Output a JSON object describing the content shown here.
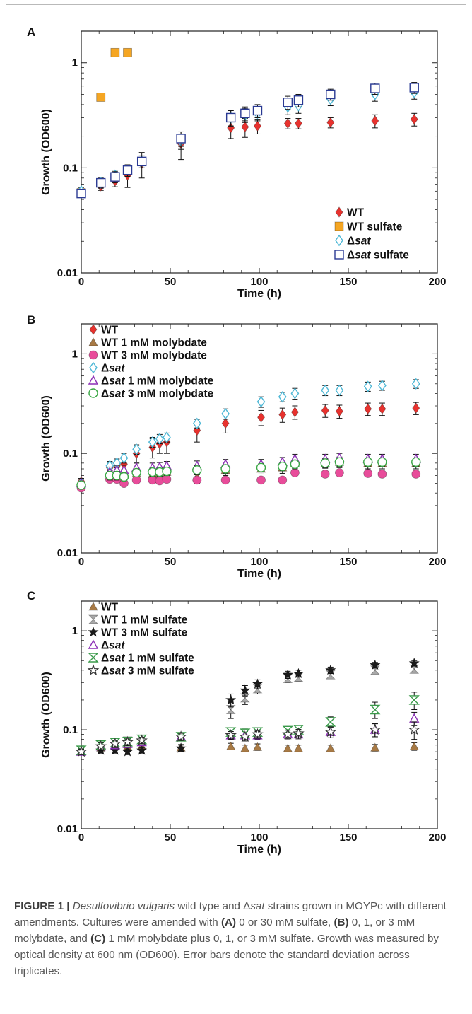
{
  "chart_data": [
    {
      "panel": "A",
      "type": "scatter",
      "xlabel": "Time (h)",
      "ylabel": "Growth (OD600)",
      "xlim": [
        0,
        200
      ],
      "ylim": [
        0.01,
        2
      ],
      "yscale": "log",
      "xticks": [
        "0",
        "50",
        "100",
        "150",
        "200"
      ],
      "yticks": [
        "0.01",
        "0.1",
        "1"
      ],
      "legend_position": "bottom-right",
      "series": [
        {
          "name": "WT",
          "marker": "diamond",
          "filled": true,
          "color": "#e8322e",
          "x": [
            0,
            11,
            19,
            26,
            34,
            56,
            84,
            92,
            99,
            116,
            122,
            140,
            165,
            187
          ],
          "y": [
            0.058,
            0.067,
            0.075,
            0.085,
            0.11,
            0.17,
            0.24,
            0.245,
            0.25,
            0.265,
            0.265,
            0.27,
            0.28,
            0.29
          ],
          "err": [
            0.004,
            0.006,
            0.009,
            0.02,
            0.03,
            0.05,
            0.05,
            0.05,
            0.04,
            0.03,
            0.03,
            0.03,
            0.04,
            0.04
          ]
        },
        {
          "name": "WT sulfate",
          "marker": "square",
          "filled": true,
          "color": "#f5a623",
          "x": [
            0,
            11,
            19,
            26
          ],
          "y": [
            0.058,
            0.47,
            1.25,
            1.25
          ],
          "err": [
            0,
            0,
            0,
            0
          ]
        },
        {
          "name": "Δsat",
          "marker": "diamond",
          "filled": false,
          "color": "#4fb8d6",
          "x": [
            0,
            11,
            19,
            26,
            34,
            56,
            84,
            92,
            99,
            116,
            122,
            140,
            165,
            187
          ],
          "y": [
            0.06,
            0.072,
            0.085,
            0.095,
            0.115,
            0.18,
            0.3,
            0.32,
            0.33,
            0.38,
            0.39,
            0.45,
            0.5,
            0.52
          ],
          "err": [
            0.005,
            0.008,
            0.01,
            0.012,
            0.015,
            0.03,
            0.05,
            0.05,
            0.05,
            0.06,
            0.06,
            0.06,
            0.07,
            0.07
          ]
        },
        {
          "name": "Δsat sulfate",
          "marker": "square",
          "filled": false,
          "color": "#2a3a93",
          "x": [
            0,
            11,
            19,
            26,
            34,
            56,
            84,
            92,
            99,
            116,
            122,
            140,
            165,
            187
          ],
          "y": [
            0.057,
            0.072,
            0.082,
            0.095,
            0.115,
            0.19,
            0.3,
            0.33,
            0.35,
            0.42,
            0.44,
            0.5,
            0.57,
            0.58
          ],
          "err": [
            0.004,
            0.007,
            0.01,
            0.012,
            0.015,
            0.03,
            0.05,
            0.05,
            0.05,
            0.06,
            0.06,
            0.06,
            0.07,
            0.07
          ]
        }
      ]
    },
    {
      "panel": "B",
      "type": "scatter",
      "xlabel": "Time (h)",
      "ylabel": "Growth (OD600)",
      "xlim": [
        0,
        200
      ],
      "ylim": [
        0.01,
        2
      ],
      "yscale": "log",
      "xticks": [
        "0",
        "50",
        "100",
        "150",
        "200"
      ],
      "yticks": [
        "0.01",
        "0.1",
        "1"
      ],
      "legend_position": "top-left",
      "series": [
        {
          "name": "WT",
          "marker": "diamond",
          "filled": true,
          "color": "#e8322e",
          "x": [
            0,
            16,
            20,
            24,
            31,
            40,
            44,
            48,
            65,
            81,
            101,
            113,
            120,
            137,
            145,
            161,
            169,
            188
          ],
          "y": [
            0.052,
            0.072,
            0.075,
            0.078,
            0.1,
            0.115,
            0.125,
            0.13,
            0.17,
            0.2,
            0.23,
            0.245,
            0.26,
            0.27,
            0.265,
            0.28,
            0.28,
            0.285
          ],
          "err": [
            0.006,
            0.008,
            0.008,
            0.01,
            0.02,
            0.025,
            0.025,
            0.03,
            0.04,
            0.04,
            0.04,
            0.04,
            0.04,
            0.04,
            0.04,
            0.04,
            0.04,
            0.04
          ]
        },
        {
          "name": "WT 1 mM molybdate",
          "marker": "triangle",
          "filled": true,
          "color": "#a87a45",
          "x": [
            0,
            16,
            20,
            24,
            31,
            40,
            44,
            48,
            65,
            81,
            101,
            113,
            120,
            137,
            145,
            161,
            169,
            188
          ],
          "y": [
            0.05,
            0.06,
            0.062,
            0.062,
            0.063,
            0.062,
            0.063,
            0.065,
            0.058,
            0.068,
            0.07,
            0.072,
            0.08,
            0.08,
            0.082,
            0.08,
            0.08,
            0.08
          ],
          "err": [
            0.006,
            0.007,
            0.007,
            0.007,
            0.007,
            0.007,
            0.007,
            0.008,
            0.008,
            0.008,
            0.008,
            0.009,
            0.009,
            0.009,
            0.01,
            0.01,
            0.01,
            0.01
          ]
        },
        {
          "name": "WT 3 mM molybdate",
          "marker": "circle",
          "filled": true,
          "color": "#e84c9a",
          "x": [
            0,
            16,
            20,
            24,
            31,
            40,
            44,
            48,
            65,
            81,
            101,
            113,
            120,
            137,
            145,
            161,
            169,
            188
          ],
          "y": [
            0.045,
            0.055,
            0.055,
            0.05,
            0.054,
            0.054,
            0.053,
            0.055,
            0.054,
            0.054,
            0.054,
            0.054,
            0.064,
            0.062,
            0.064,
            0.063,
            0.062,
            0.062
          ],
          "err": [
            0.003,
            0.003,
            0.003,
            0.003,
            0.003,
            0.003,
            0.003,
            0.003,
            0.003,
            0.003,
            0.003,
            0.003,
            0.003,
            0.003,
            0.003,
            0.003,
            0.003,
            0.003
          ]
        },
        {
          "name": "Δsat",
          "marker": "diamond",
          "filled": false,
          "color": "#4fb8d6",
          "x": [
            0,
            16,
            20,
            24,
            31,
            40,
            44,
            48,
            65,
            81,
            101,
            113,
            120,
            137,
            145,
            161,
            169,
            188
          ],
          "y": [
            0.05,
            0.075,
            0.08,
            0.09,
            0.11,
            0.13,
            0.14,
            0.145,
            0.2,
            0.25,
            0.33,
            0.37,
            0.4,
            0.43,
            0.43,
            0.47,
            0.48,
            0.5
          ],
          "err": [
            0.005,
            0.008,
            0.008,
            0.01,
            0.012,
            0.015,
            0.015,
            0.015,
            0.02,
            0.03,
            0.04,
            0.04,
            0.05,
            0.05,
            0.05,
            0.05,
            0.05,
            0.05
          ]
        },
        {
          "name": "Δsat 1 mM molybdate",
          "marker": "triangle",
          "filled": false,
          "color": "#8b2fb5",
          "x": [
            0,
            16,
            20,
            24,
            31,
            40,
            44,
            48,
            65,
            81,
            101,
            113,
            120,
            137,
            145,
            161,
            169,
            188
          ],
          "y": [
            0.05,
            0.065,
            0.068,
            0.068,
            0.072,
            0.072,
            0.073,
            0.075,
            0.075,
            0.078,
            0.078,
            0.082,
            0.088,
            0.088,
            0.09,
            0.088,
            0.088,
            0.088
          ],
          "err": [
            0.006,
            0.008,
            0.008,
            0.008,
            0.008,
            0.008,
            0.008,
            0.008,
            0.009,
            0.009,
            0.009,
            0.009,
            0.01,
            0.01,
            0.01,
            0.01,
            0.01,
            0.01
          ]
        },
        {
          "name": "Δsat 3 mM molybdate",
          "marker": "circle",
          "filled": false,
          "color": "#3aa845",
          "x": [
            0,
            16,
            20,
            24,
            31,
            40,
            44,
            48,
            65,
            81,
            101,
            113,
            120,
            137,
            145,
            161,
            169,
            188
          ],
          "y": [
            0.048,
            0.06,
            0.06,
            0.058,
            0.064,
            0.065,
            0.065,
            0.066,
            0.068,
            0.07,
            0.072,
            0.074,
            0.078,
            0.08,
            0.082,
            0.082,
            0.082,
            0.082
          ],
          "err": [
            0.004,
            0.006,
            0.006,
            0.006,
            0.006,
            0.006,
            0.006,
            0.006,
            0.007,
            0.007,
            0.007,
            0.007,
            0.008,
            0.008,
            0.008,
            0.008,
            0.008,
            0.008
          ]
        }
      ]
    },
    {
      "panel": "C",
      "type": "scatter",
      "xlabel": "Time (h)",
      "ylabel": "Growth (OD600)",
      "xlim": [
        0,
        200
      ],
      "ylim": [
        0.01,
        2
      ],
      "yscale": "log",
      "xticks": [
        "0",
        "50",
        "100",
        "150",
        "200"
      ],
      "yticks": [
        "0.01",
        "0.1",
        "1"
      ],
      "legend_position": "top-left",
      "series": [
        {
          "name": "WT",
          "marker": "triangle",
          "filled": true,
          "color": "#a87a45",
          "x": [
            0,
            11,
            19,
            26,
            34,
            56,
            84,
            92,
            99,
            116,
            122,
            140,
            165,
            187
          ],
          "y": [
            0.06,
            0.066,
            0.068,
            0.068,
            0.068,
            0.066,
            0.068,
            0.065,
            0.067,
            0.065,
            0.065,
            0.065,
            0.066,
            0.068
          ],
          "err": [
            0.004,
            0.005,
            0.005,
            0.005,
            0.005,
            0.005,
            0.005,
            0.005,
            0.005,
            0.005,
            0.005,
            0.005,
            0.005,
            0.006
          ]
        },
        {
          "name": "WT 1 mM sulfate",
          "marker": "hourglass",
          "filled": true,
          "color": "#a9a9a9",
          "x": [
            0,
            11,
            19,
            26,
            34,
            56,
            84,
            92,
            99,
            116,
            122,
            140,
            165,
            187
          ],
          "y": [
            0.062,
            0.07,
            0.075,
            0.077,
            0.08,
            0.085,
            0.16,
            0.21,
            0.26,
            0.33,
            0.34,
            0.36,
            0.4,
            0.41
          ],
          "err": [
            0.004,
            0.006,
            0.006,
            0.006,
            0.006,
            0.008,
            0.03,
            0.03,
            0.03,
            0.03,
            0.03,
            0.03,
            0.03,
            0.03
          ]
        },
        {
          "name": "WT 3 mM sulfate",
          "marker": "star",
          "filled": true,
          "color": "#1a1a1a",
          "x": [
            0,
            11,
            19,
            26,
            34,
            56,
            84,
            92,
            99,
            116,
            122,
            140,
            165,
            187
          ],
          "y": [
            0.06,
            0.062,
            0.062,
            0.06,
            0.062,
            0.065,
            0.2,
            0.25,
            0.29,
            0.36,
            0.37,
            0.4,
            0.45,
            0.47
          ],
          "err": [
            0.004,
            0.004,
            0.004,
            0.004,
            0.004,
            0.005,
            0.03,
            0.03,
            0.03,
            0.03,
            0.03,
            0.03,
            0.03,
            0.03
          ]
        },
        {
          "name": "Δsat",
          "marker": "triangle",
          "filled": false,
          "color": "#8b2fb5",
          "x": [
            0,
            11,
            19,
            26,
            34,
            56,
            84,
            92,
            99,
            116,
            122,
            140,
            165,
            187
          ],
          "y": [
            0.06,
            0.068,
            0.07,
            0.072,
            0.075,
            0.085,
            0.088,
            0.088,
            0.088,
            0.09,
            0.09,
            0.095,
            0.1,
            0.13
          ],
          "err": [
            0.004,
            0.006,
            0.006,
            0.006,
            0.006,
            0.007,
            0.008,
            0.008,
            0.008,
            0.009,
            0.009,
            0.012,
            0.015,
            0.02
          ]
        },
        {
          "name": "Δsat 1 mM sulfate",
          "marker": "hourglass",
          "filled": false,
          "color": "#3a9a4a",
          "x": [
            0,
            11,
            19,
            26,
            34,
            56,
            84,
            92,
            99,
            116,
            122,
            140,
            165,
            187
          ],
          "y": [
            0.062,
            0.07,
            0.074,
            0.076,
            0.08,
            0.085,
            0.095,
            0.092,
            0.095,
            0.098,
            0.1,
            0.12,
            0.16,
            0.2
          ],
          "err": [
            0.004,
            0.006,
            0.006,
            0.006,
            0.006,
            0.007,
            0.01,
            0.01,
            0.01,
            0.01,
            0.01,
            0.015,
            0.03,
            0.04
          ]
        },
        {
          "name": "Δsat 3 mM sulfate",
          "marker": "star",
          "filled": false,
          "color": "#333333",
          "x": [
            0,
            11,
            19,
            26,
            34,
            56,
            84,
            92,
            99,
            116,
            122,
            140,
            165,
            187
          ],
          "y": [
            0.06,
            0.068,
            0.072,
            0.075,
            0.078,
            0.085,
            0.088,
            0.085,
            0.09,
            0.09,
            0.092,
            0.095,
            0.1,
            0.1
          ],
          "err": [
            0.004,
            0.006,
            0.006,
            0.006,
            0.006,
            0.007,
            0.008,
            0.008,
            0.008,
            0.009,
            0.009,
            0.012,
            0.015,
            0.02
          ]
        }
      ]
    }
  ],
  "caption": {
    "label": "FIGURE 1 |",
    "species": "Desulfovibrio vulgaris",
    "text_1": " wild type and Δ",
    "sat_1": "sat",
    "text_2": " strains grown in MOYPc with different amendments. Cultures were amended with ",
    "a": "(A)",
    "text_3": " 0 or 30 mM sulfate, ",
    "b": "(B)",
    "text_4": " 0, 1, or 3 mM molybdate, and ",
    "c": "(C)",
    "text_5": " 1 mM molybdate plus 0, 1, or 3 mM sulfate. Growth was measured by optical density at 600 nm (OD600). Error bars denote the standard deviation across triplicates."
  }
}
